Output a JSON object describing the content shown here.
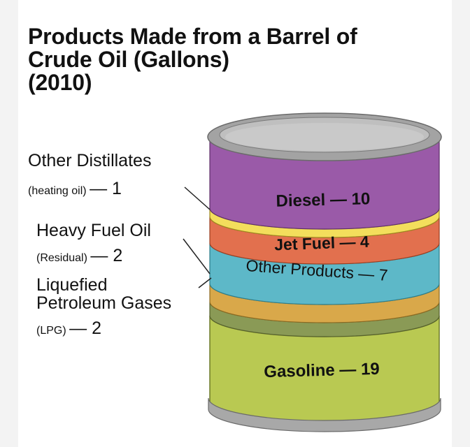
{
  "title": [
    "Products Made from a Barrel of",
    "Crude Oil (Gallons)",
    "(2010)"
  ],
  "side_labels": {
    "other_distillates": {
      "name": "Other Distillates",
      "sub": "(heating oil)",
      "value": "— 1"
    },
    "heavy_fuel_oil": {
      "name": "Heavy Fuel Oil",
      "sub": "(Residual)",
      "value": "— 2"
    },
    "lpg": {
      "name_line1": "Liquefied",
      "name_line2": "Petroleum Gases",
      "sub": "(LPG)",
      "value": "— 2"
    }
  },
  "barrel_labels": {
    "diesel": "Diesel — 10",
    "jet_fuel": "Jet Fuel — 4",
    "other_products": "Other Products — 7",
    "gasoline": "Gasoline — 19"
  },
  "segments": [
    {
      "product": "Diesel",
      "gallons": 10,
      "color": "#9a5aa8"
    },
    {
      "product": "Other Distillates",
      "gallons": 1,
      "color": "#f3de5c"
    },
    {
      "product": "Jet Fuel",
      "gallons": 4,
      "color": "#e2704e"
    },
    {
      "product": "Other Products",
      "gallons": 7,
      "color": "#5db8c8"
    },
    {
      "product": "Heavy Fuel Oil",
      "gallons": 2,
      "color": "#d9a84a"
    },
    {
      "product": "Liquefied Petroleum Gases",
      "gallons": 2,
      "color": "#8a9a56"
    },
    {
      "product": "Gasoline",
      "gallons": 19,
      "color": "#b9c952"
    }
  ],
  "colors": {
    "rim": "#9a9a9a",
    "lid": "#bdbdbd",
    "text": "#111111"
  }
}
